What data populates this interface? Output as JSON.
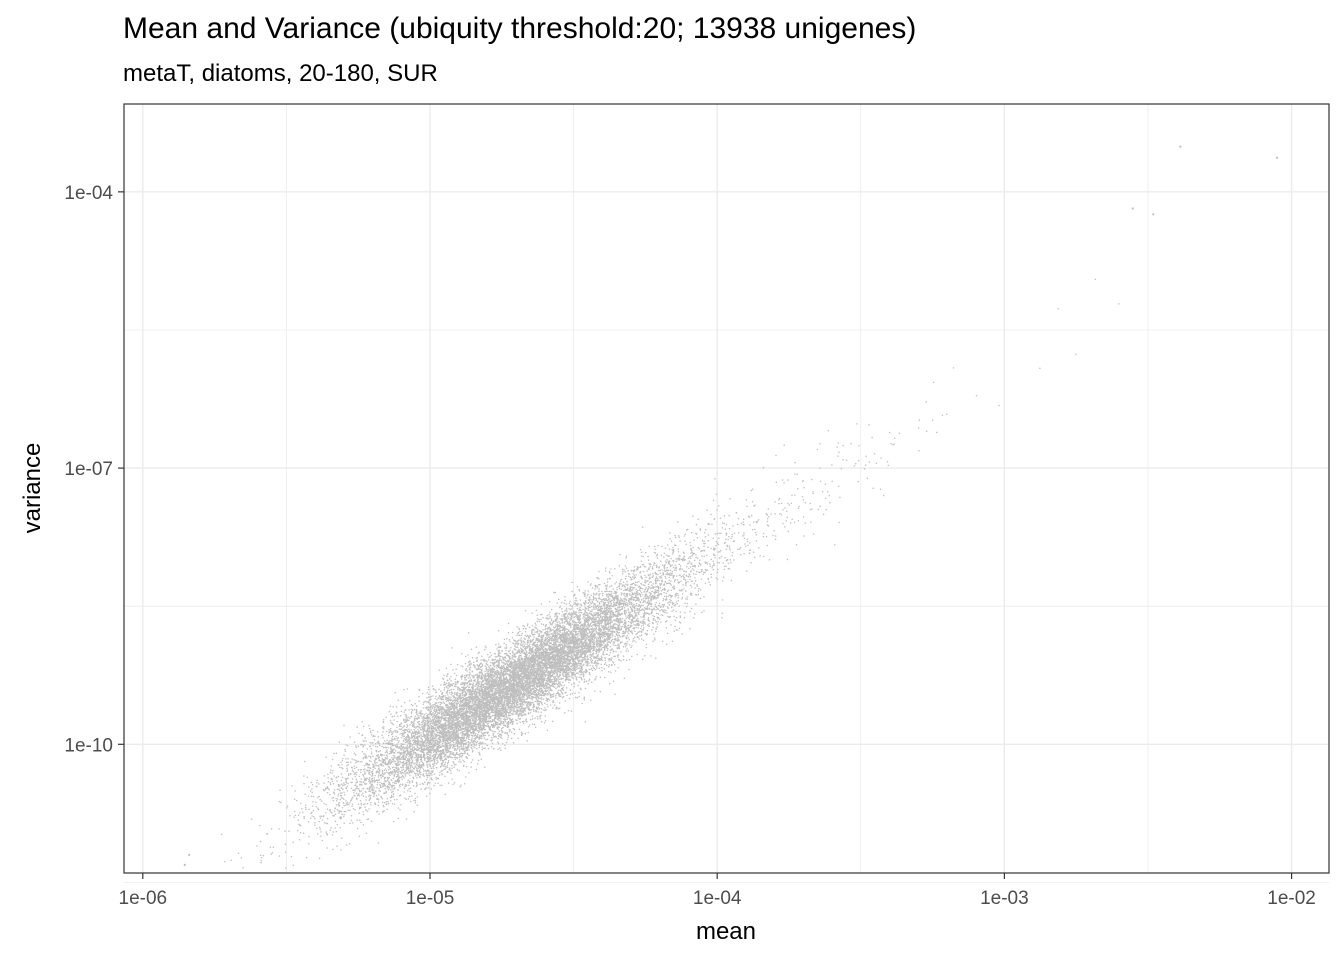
{
  "chart_data": {
    "type": "scatter",
    "title": "Mean and Variance (ubiquity threshold:20; 13938 unigenes)",
    "subtitle": "metaT, diatoms, 20-180, SUR",
    "xlabel": "mean",
    "ylabel": "variance",
    "x_scale": "log10",
    "y_scale": "log10",
    "xlim": [
      8.6e-07,
      0.0135
    ],
    "ylim": [
      4e-12,
      0.0009
    ],
    "x_ticks": [
      1e-06,
      1e-05,
      0.0001,
      0.001,
      0.01
    ],
    "x_tick_labels": [
      "1e-06",
      "1e-05",
      "1e-04",
      "1e-03",
      "1e-02"
    ],
    "y_ticks": [
      1e-10,
      1e-07,
      0.0001
    ],
    "y_tick_labels": [
      "1e-10",
      "1e-07",
      "1e-04"
    ],
    "grid": true,
    "point_color": "#bebebe",
    "n_points": 13938,
    "trend": {
      "slope_log10": 2.0,
      "intercept_log10": 0.075,
      "sd_log10": 0.22
    },
    "notable_points": [
      {
        "x": 0.0041,
        "y": 0.00031
      },
      {
        "x": 0.0089,
        "y": 0.000235
      },
      {
        "x": 0.0028,
        "y": 6.6e-05
      },
      {
        "x": 0.0033,
        "y": 5.7e-05
      },
      {
        "x": 1.4e-06,
        "y": 4.9e-12
      },
      {
        "x": 1.45e-06,
        "y": 6.3e-12
      }
    ]
  },
  "colors": {
    "background": "#ffffff",
    "grid": "#ebebeb",
    "border": "#333333",
    "points": "#bebebe"
  }
}
